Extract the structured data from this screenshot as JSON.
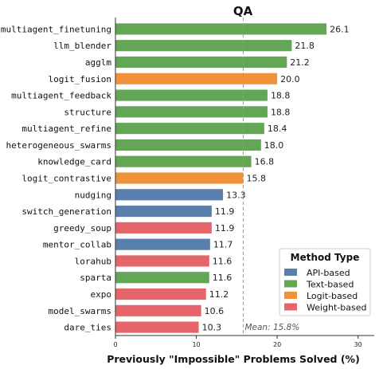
{
  "chart_data": {
    "type": "bar",
    "orientation": "horizontal",
    "title": "QA",
    "xlabel": "Previously \"Impossible\" Problems Solved (%)",
    "ylabel": "",
    "xlim": [
      0,
      32
    ],
    "xticks": [
      0,
      10,
      20,
      30
    ],
    "grid": false,
    "categories": [
      "multiagent_finetuning",
      "llm_blender",
      "agglm",
      "logit_fusion",
      "multiagent_feedback",
      "structure",
      "multiagent_refine",
      "heterogeneous_swarms",
      "knowledge_card",
      "logit_contrastive",
      "nudging",
      "switch_generation",
      "greedy_soup",
      "mentor_collab",
      "lorahub",
      "sparta",
      "expo",
      "model_swarms",
      "dare_ties"
    ],
    "values": [
      26.1,
      21.8,
      21.2,
      20.0,
      18.8,
      18.8,
      18.4,
      18.0,
      16.8,
      15.8,
      13.3,
      11.9,
      11.9,
      11.7,
      11.6,
      11.6,
      11.2,
      10.6,
      10.3
    ],
    "value_labels": [
      "26.1",
      "21.8",
      "21.2",
      "20.0",
      "18.8",
      "18.8",
      "18.4",
      "18.0",
      "16.8",
      "15.8",
      "13.3",
      "11.9",
      "11.9",
      "11.7",
      "11.6",
      "11.6",
      "11.2",
      "10.6",
      "10.3"
    ],
    "types": [
      "Text-based",
      "Text-based",
      "Text-based",
      "Logit-based",
      "Text-based",
      "Text-based",
      "Text-based",
      "Text-based",
      "Text-based",
      "Logit-based",
      "API-based",
      "API-based",
      "Weight-based",
      "API-based",
      "Weight-based",
      "Text-based",
      "Weight-based",
      "Weight-based",
      "Weight-based"
    ],
    "mean": 15.8,
    "mean_label": "Mean: 15.8%",
    "legend": {
      "title": "Method Type",
      "placement": "bottom-right",
      "entries": [
        {
          "label": "API-based",
          "color": "#5b7fad"
        },
        {
          "label": "Text-based",
          "color": "#62a656"
        },
        {
          "label": "Logit-based",
          "color": "#f0923a"
        },
        {
          "label": "Weight-based",
          "color": "#e4666a"
        }
      ]
    }
  }
}
